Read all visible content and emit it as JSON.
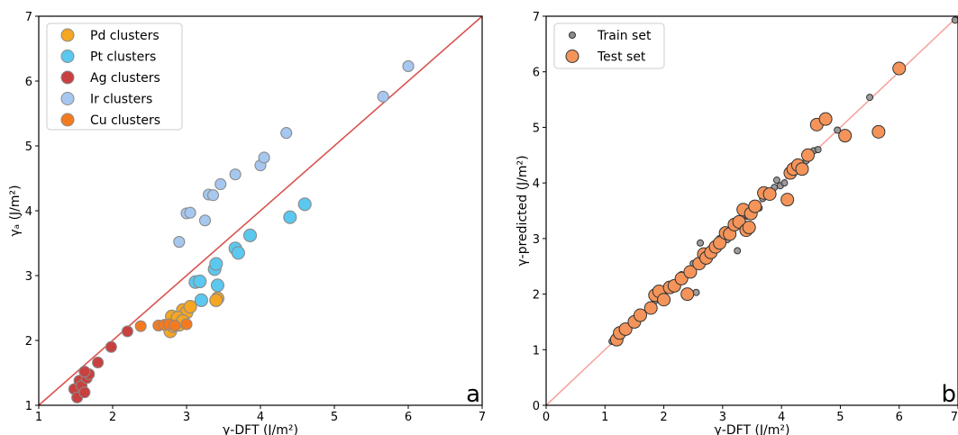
{
  "chart_data": [
    {
      "type": "scatter",
      "panel_label": "a",
      "xlabel": "γ-DFT (J/m²)",
      "ylabel": "γₐ (J/m²)",
      "xlim": [
        1,
        7
      ],
      "ylim": [
        1,
        7
      ],
      "xticks": [
        1,
        2,
        3,
        4,
        5,
        6,
        7
      ],
      "yticks": [
        1,
        2,
        3,
        4,
        5,
        6,
        7
      ],
      "legend_position": "top-left",
      "reference_line": {
        "x": [
          1,
          7
        ],
        "y": [
          1,
          7
        ],
        "color": "#d9534f"
      },
      "series": [
        {
          "name": "Pd clusters",
          "color": "#f5a623",
          "points": [
            [
              2.78,
              2.14
            ],
            [
              2.82,
              2.22
            ],
            [
              2.86,
              2.28
            ],
            [
              2.9,
              2.24
            ],
            [
              2.95,
              2.47
            ],
            [
              3.0,
              2.43
            ],
            [
              3.05,
              2.52
            ],
            [
              2.8,
              2.37
            ],
            [
              2.88,
              2.35
            ],
            [
              3.42,
              2.65
            ],
            [
              3.4,
              2.62
            ],
            [
              2.95,
              2.3
            ]
          ]
        },
        {
          "name": "Pt clusters",
          "color": "#5bc8ef",
          "points": [
            [
              3.12,
              2.9
            ],
            [
              3.18,
              2.91
            ],
            [
              3.2,
              2.62
            ],
            [
              3.38,
              3.1
            ],
            [
              3.4,
              3.18
            ],
            [
              3.42,
              2.85
            ],
            [
              3.66,
              3.42
            ],
            [
              3.7,
              3.35
            ],
            [
              3.86,
              3.62
            ],
            [
              4.4,
              3.9
            ],
            [
              4.6,
              4.1
            ]
          ]
        },
        {
          "name": "Ag clusters",
          "color": "#c8403f",
          "points": [
            [
              1.48,
              1.25
            ],
            [
              1.52,
              1.12
            ],
            [
              1.55,
              1.38
            ],
            [
              1.58,
              1.3
            ],
            [
              1.62,
              1.2
            ],
            [
              1.65,
              1.42
            ],
            [
              1.68,
              1.48
            ],
            [
              1.62,
              1.52
            ],
            [
              1.8,
              1.66
            ],
            [
              1.98,
              1.9
            ],
            [
              2.2,
              2.14
            ]
          ]
        },
        {
          "name": "Ir clusters",
          "color": "#a6c8f0",
          "points": [
            [
              2.9,
              3.52
            ],
            [
              3.0,
              3.96
            ],
            [
              3.05,
              3.97
            ],
            [
              3.25,
              3.85
            ],
            [
              3.3,
              4.25
            ],
            [
              3.36,
              4.24
            ],
            [
              3.46,
              4.41
            ],
            [
              3.66,
              4.56
            ],
            [
              4.0,
              4.7
            ],
            [
              4.05,
              4.82
            ],
            [
              4.35,
              5.2
            ],
            [
              5.66,
              5.76
            ],
            [
              6.0,
              6.23
            ]
          ]
        },
        {
          "name": "Cu clusters",
          "color": "#f47a20",
          "points": [
            [
              2.38,
              2.22
            ],
            [
              2.62,
              2.23
            ],
            [
              2.7,
              2.24
            ],
            [
              2.76,
              2.25
            ],
            [
              2.84,
              2.23
            ],
            [
              3.0,
              2.25
            ]
          ]
        }
      ]
    },
    {
      "type": "scatter",
      "panel_label": "b",
      "xlabel": "γ-DFT (J/m²)",
      "ylabel": "γ-predicted (J/m²)",
      "xlim": [
        0,
        7
      ],
      "ylim": [
        0,
        7
      ],
      "xticks": [
        0,
        1,
        2,
        3,
        4,
        5,
        6,
        7
      ],
      "yticks": [
        0,
        1,
        2,
        3,
        4,
        5,
        6,
        7
      ],
      "legend_position": "top-left",
      "reference_line": {
        "x": [
          0,
          7
        ],
        "y": [
          0,
          7
        ],
        "color": "#f4a6a0"
      },
      "series": [
        {
          "name": "Train set",
          "color": "#8c8c8c",
          "points": [
            [
              1.12,
              1.15
            ],
            [
              1.22,
              1.25
            ],
            [
              1.3,
              1.33
            ],
            [
              1.42,
              1.42
            ],
            [
              1.55,
              1.55
            ],
            [
              1.62,
              1.65
            ],
            [
              1.75,
              1.72
            ],
            [
              1.85,
              1.88
            ],
            [
              1.95,
              1.98
            ],
            [
              2.05,
              2.08
            ],
            [
              2.15,
              2.12
            ],
            [
              2.22,
              2.2
            ],
            [
              2.3,
              2.35
            ],
            [
              2.42,
              2.4
            ],
            [
              2.5,
              2.55
            ],
            [
              2.55,
              2.03
            ],
            [
              2.58,
              2.6
            ],
            [
              2.62,
              2.92
            ],
            [
              2.68,
              2.7
            ],
            [
              2.75,
              2.72
            ],
            [
              2.82,
              2.85
            ],
            [
              2.9,
              2.88
            ],
            [
              2.95,
              3.0
            ],
            [
              3.02,
              3.05
            ],
            [
              3.08,
              2.98
            ],
            [
              3.12,
              3.15
            ],
            [
              3.18,
              3.3
            ],
            [
              3.22,
              3.22
            ],
            [
              3.25,
              2.78
            ],
            [
              3.3,
              3.35
            ],
            [
              3.35,
              3.28
            ],
            [
              3.42,
              3.4
            ],
            [
              3.48,
              3.52
            ],
            [
              3.52,
              3.45
            ],
            [
              3.58,
              3.6
            ],
            [
              3.62,
              3.55
            ],
            [
              3.68,
              3.72
            ],
            [
              3.75,
              3.8
            ],
            [
              3.82,
              3.78
            ],
            [
              3.88,
              3.92
            ],
            [
              3.92,
              4.05
            ],
            [
              3.98,
              3.95
            ],
            [
              4.05,
              4.0
            ],
            [
              4.12,
              4.15
            ],
            [
              4.2,
              4.22
            ],
            [
              4.3,
              4.35
            ],
            [
              4.42,
              4.4
            ],
            [
              4.55,
              4.58
            ],
            [
              4.62,
              4.6
            ],
            [
              4.95,
              4.95
            ],
            [
              5.5,
              5.54
            ],
            [
              6.95,
              6.93
            ]
          ]
        },
        {
          "name": "Test set",
          "color": "#f4945a",
          "points": [
            [
              1.2,
              1.18
            ],
            [
              1.25,
              1.3
            ],
            [
              1.35,
              1.37
            ],
            [
              1.5,
              1.5
            ],
            [
              1.6,
              1.62
            ],
            [
              1.78,
              1.75
            ],
            [
              1.85,
              1.98
            ],
            [
              1.92,
              2.05
            ],
            [
              2.0,
              1.9
            ],
            [
              2.1,
              2.12
            ],
            [
              2.18,
              2.15
            ],
            [
              2.3,
              2.28
            ],
            [
              2.4,
              2.0
            ],
            [
              2.45,
              2.4
            ],
            [
              2.6,
              2.55
            ],
            [
              2.68,
              2.72
            ],
            [
              2.72,
              2.65
            ],
            [
              2.8,
              2.75
            ],
            [
              2.88,
              2.85
            ],
            [
              2.95,
              2.92
            ],
            [
              3.05,
              3.1
            ],
            [
              3.12,
              3.08
            ],
            [
              3.2,
              3.25
            ],
            [
              3.28,
              3.3
            ],
            [
              3.35,
              3.52
            ],
            [
              3.4,
              3.15
            ],
            [
              3.45,
              3.2
            ],
            [
              3.48,
              3.45
            ],
            [
              3.55,
              3.58
            ],
            [
              3.7,
              3.82
            ],
            [
              3.8,
              3.8
            ],
            [
              4.1,
              3.7
            ],
            [
              4.15,
              4.18
            ],
            [
              4.2,
              4.25
            ],
            [
              4.28,
              4.32
            ],
            [
              4.35,
              4.25
            ],
            [
              4.45,
              4.5
            ],
            [
              4.6,
              5.05
            ],
            [
              4.75,
              5.15
            ],
            [
              5.08,
              4.85
            ],
            [
              5.65,
              4.92
            ],
            [
              6.0,
              6.06
            ]
          ]
        }
      ]
    }
  ]
}
